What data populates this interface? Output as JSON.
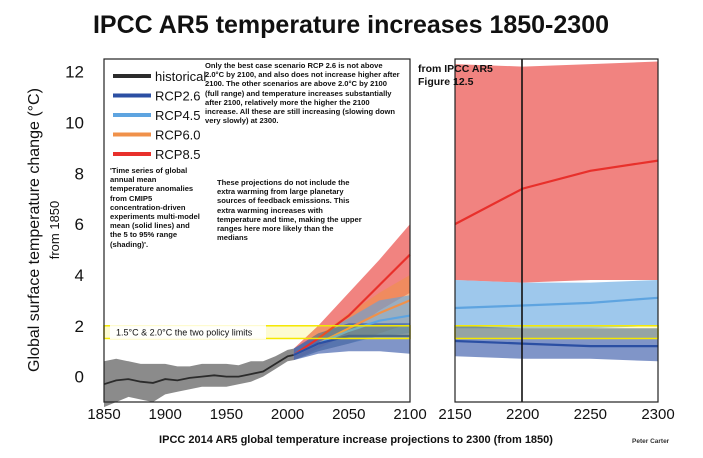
{
  "chart_data": {
    "type": "area",
    "title": "IPCC AR5 temperature increases 1850-2300",
    "xlabel": "IPCC 2014 AR5 global temperature increase projections to 2300 (from 1850)",
    "ylabel": "Global surface temperature change (°C)",
    "ylabel_sub": "from 1850",
    "credit": "Peter Carter",
    "ylim": [
      -1,
      12.5
    ],
    "y_ticks": [
      "0",
      "2",
      "4",
      "6",
      "8",
      "10",
      "12"
    ],
    "panels": [
      {
        "name": "1850-2100",
        "xlim": [
          1850,
          2100
        ],
        "x_ticks": [
          "1850",
          "1900",
          "1950",
          "2000",
          "2050",
          "2100"
        ]
      },
      {
        "name": "2100-2300",
        "xlim": [
          2150,
          2300
        ],
        "x_ticks": [
          "2150",
          "2200",
          "2250",
          "2300"
        ],
        "annotation": "from IPCC AR5 Figure 12.5"
      }
    ],
    "policy_band": {
      "low": 1.5,
      "high": 2.0,
      "label": "1.5°C & 2.0°C the two policy limits"
    },
    "legend": {
      "placement": "top-left",
      "entries": [
        "historical",
        "RCP2.6",
        "RCP4.5",
        "RCP6.0",
        "RCP8.5"
      ]
    },
    "colors": {
      "historical": "#2b2b2b",
      "RCP2.6": "#2b4fa3",
      "RCP4.5": "#5ea4e0",
      "RCP6.0": "#f0914a",
      "RCP8.5": "#e8302b",
      "band": "#f5e800"
    },
    "series": [
      {
        "name": "historical",
        "x": [
          1850,
          1860,
          1870,
          1880,
          1890,
          1900,
          1910,
          1920,
          1930,
          1940,
          1950,
          1960,
          1970,
          1980,
          1990,
          2000,
          2005
        ],
        "mean": [
          -0.3,
          -0.15,
          -0.1,
          -0.2,
          -0.25,
          -0.1,
          -0.15,
          -0.05,
          0,
          0.05,
          0,
          0,
          0.1,
          0.2,
          0.5,
          0.8,
          0.85
        ],
        "low": [
          -1.2,
          -1.0,
          -0.8,
          -0.9,
          -1.0,
          -0.7,
          -0.6,
          -0.5,
          -0.4,
          -0.4,
          -0.4,
          -0.3,
          -0.2,
          0,
          0.3,
          0.6,
          0.65
        ],
        "high": [
          0.6,
          0.7,
          0.6,
          0.5,
          0.5,
          0.5,
          0.4,
          0.4,
          0.5,
          0.5,
          0.5,
          0.45,
          0.6,
          0.6,
          0.8,
          1.05,
          1.1
        ]
      },
      {
        "name": "RCP8.5",
        "x": [
          2005,
          2025,
          2050,
          2075,
          2100,
          2150,
          2200,
          2250,
          2300
        ],
        "mean": [
          0.85,
          1.5,
          2.4,
          3.6,
          4.8,
          6.0,
          7.4,
          8.1,
          8.5
        ],
        "low": [
          0.65,
          1.1,
          1.7,
          2.6,
          3.3,
          3.8,
          3.7,
          3.8,
          3.8
        ],
        "high": [
          1.1,
          2.0,
          3.3,
          4.6,
          6.0,
          12.3,
          12.2,
          12.3,
          12.4
        ]
      },
      {
        "name": "RCP6.0",
        "x": [
          2005,
          2025,
          2050,
          2075,
          2100
        ],
        "mean": [
          0.85,
          1.3,
          1.9,
          2.5,
          3.0
        ],
        "low": [
          0.65,
          1.0,
          1.3,
          1.7,
          2.1
        ],
        "high": [
          1.1,
          1.6,
          2.5,
          3.3,
          4.0
        ]
      },
      {
        "name": "RCP4.5",
        "x": [
          2005,
          2025,
          2050,
          2075,
          2100,
          2150,
          2200,
          2250,
          2300
        ],
        "mean": [
          0.85,
          1.3,
          1.8,
          2.2,
          2.4,
          2.7,
          2.8,
          2.9,
          3.1
        ],
        "low": [
          0.65,
          1.0,
          1.3,
          1.6,
          1.7,
          1.9,
          1.9,
          1.9,
          2.0
        ],
        "high": [
          1.1,
          1.6,
          2.3,
          3.0,
          3.2,
          3.8,
          3.7,
          3.7,
          3.8
        ]
      },
      {
        "name": "RCP2.6",
        "x": [
          2005,
          2025,
          2050,
          2075,
          2100,
          2150,
          2200,
          2250,
          2300
        ],
        "mean": [
          0.85,
          1.3,
          1.6,
          1.6,
          1.6,
          1.4,
          1.3,
          1.2,
          1.2
        ],
        "low": [
          0.65,
          0.9,
          1.0,
          1.0,
          0.9,
          0.8,
          0.7,
          0.7,
          0.6
        ],
        "high": [
          1.1,
          1.7,
          2.1,
          2.1,
          2.1,
          2.0,
          1.9,
          1.9,
          1.9
        ]
      }
    ],
    "notes": [
      "Only the best case scenario RCP 2.6 is not above 2.0°C by 2100, and also does not increase higher after 2100. The other scenarios are above 2.0°C by 2100 (full range) and temperature increases substantially after 2100, relatively more the higher the 2100 increase. All these are still increasing (slowing down very slowly) at 2300.",
      "'Time series of global annual mean temperature anomalies from CMIP5 concentration-driven experiments multi-model mean (solid lines) and the 5 to 95% range (shading)'.",
      "These projections do not include the extra warming from large planetary sources of feedback emissions. This extra warming increases with temperature and time, making the upper ranges here more likely than the medians"
    ]
  }
}
